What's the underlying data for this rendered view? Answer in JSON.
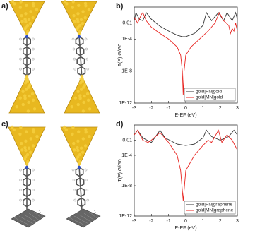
{
  "panel_labels": [
    "a)",
    "b)",
    "c)",
    "d)"
  ],
  "chart_data": [
    {
      "type": "line",
      "log_y": true,
      "x_label": "E-EF (eV)",
      "y_label": "T(E) G/G0",
      "xlim": [
        -3,
        3
      ],
      "xticks": [
        -3,
        -2,
        -1,
        0,
        1,
        2,
        3
      ],
      "ylim": [
        1e-12,
        1
      ],
      "yticks": [
        0.01,
        {
          "value": 0.0001,
          "label": "1E-4"
        },
        {
          "value": 1e-08,
          "label": "1E-8"
        },
        {
          "value": 1e-12,
          "label": "1E-12"
        }
      ],
      "legend": "lower right",
      "series": [
        {
          "name": "gold|PN|gold",
          "color": "#333333",
          "x": [
            -3,
            -2.9,
            -2.7,
            -2.5,
            -2.3,
            -2,
            -1.5,
            -1,
            -0.5,
            -0.2,
            0,
            0.5,
            1,
            1.2,
            1.5,
            1.9,
            2.2,
            2.4,
            2.7,
            2.9,
            3
          ],
          "values": [
            0.02,
            0.2,
            0.03,
            0.02,
            0.2,
            0.03,
            0.004,
            0.001,
            0.0003,
            0.0002,
            0.0002,
            0.0005,
            0.005,
            0.2,
            0.02,
            0.2,
            0.02,
            0.2,
            0.02,
            0.2,
            0.03
          ]
        },
        {
          "name": "gold|MN|gold",
          "color": "#e8231f",
          "x": [
            -3,
            -2.8,
            -2.6,
            -2.5,
            -2.3,
            -2,
            -1.5,
            -1,
            -0.5,
            -0.3,
            -0.2,
            -0.15,
            -0.1,
            0,
            0.3,
            0.8,
            1.3,
            1.7,
            1.95,
            2.2,
            2.5,
            2.6,
            2.7,
            2.8,
            2.9,
            3
          ],
          "values": [
            0.05,
            0.01,
            0.1,
            0.2,
            0.02,
            0.003,
            0.0005,
            0.0001,
            1e-05,
            1e-06,
            1e-08,
            1e-11,
            1e-08,
            1e-06,
            1e-05,
            0.0001,
            0.001,
            0.01,
            0.2,
            0.02,
            0.005,
            0.0005,
            0.002,
            0.001,
            0.01,
            0.001
          ]
        }
      ]
    },
    {
      "type": "line",
      "log_y": true,
      "x_label": "E-EF (eV)",
      "y_label": "T(E) G/G0",
      "xlim": [
        -3,
        3
      ],
      "xticks": [
        -3,
        -2,
        -1,
        0,
        1,
        2,
        3
      ],
      "ylim": [
        1e-12,
        1
      ],
      "yticks": [
        0.01,
        {
          "value": 0.0001,
          "label": "1E-4"
        },
        {
          "value": 1e-08,
          "label": "1E-8"
        },
        {
          "value": 1e-12,
          "label": "1E-12"
        }
      ],
      "legend": "lower right",
      "series": [
        {
          "name": "gold|PN|graphene",
          "color": "#333333",
          "x": [
            -3,
            -2.8,
            -2.5,
            -2,
            -1.5,
            -1.2,
            -0.5,
            0,
            0.5,
            1,
            1.2,
            1.5,
            2,
            2.5,
            2.8,
            3
          ],
          "values": [
            0.05,
            0.2,
            0.02,
            0.005,
            0.2,
            0.02,
            0.003,
            0.002,
            0.003,
            0.02,
            0.2,
            0.03,
            0.01,
            0.03,
            0.2,
            0.05
          ]
        },
        {
          "name": "gold|MN|graphene",
          "color": "#e8231f",
          "x": [
            -3,
            -2.8,
            -2.5,
            -2.2,
            -2,
            -1.5,
            -1,
            -0.5,
            -0.3,
            -0.15,
            0,
            0.5,
            1,
            1.3,
            1.5,
            1.9,
            2.1,
            2.4,
            2.7,
            3
          ],
          "values": [
            0.05,
            0.2,
            0.01,
            0.005,
            0.01,
            0.1,
            0.005,
            0.0001,
            1e-06,
            1e-10,
            1e-06,
            0.0001,
            0.002,
            0.01,
            0.005,
            0.2,
            0.005,
            0.05,
            0.01,
            0.0005
          ]
        }
      ]
    }
  ]
}
